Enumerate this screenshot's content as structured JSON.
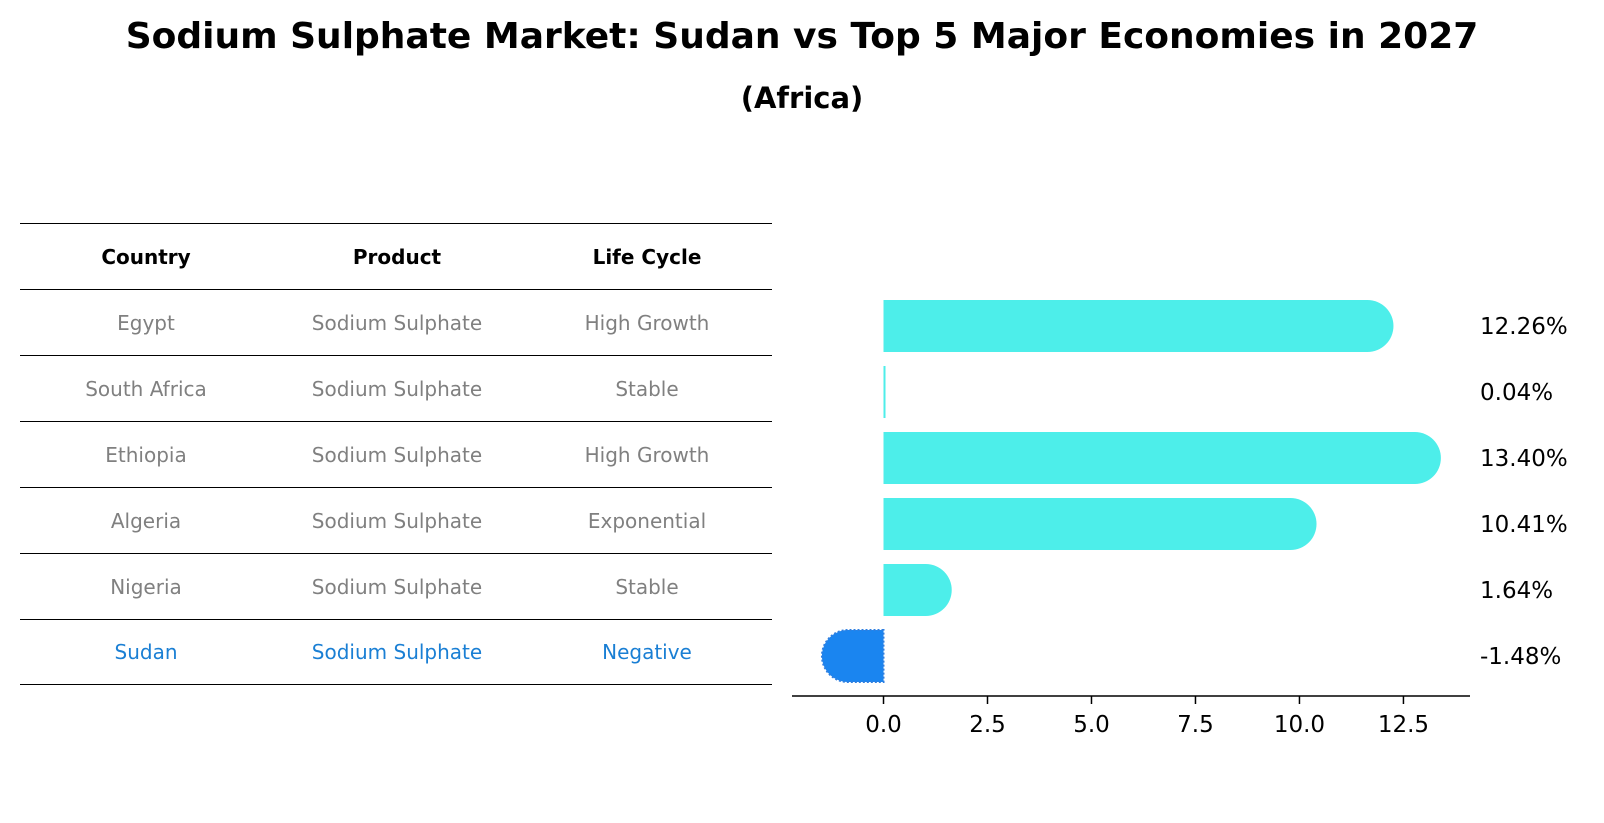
{
  "header": {
    "title": "Sodium Sulphate Market: Sudan vs Top 5 Major Economies in 2027",
    "subtitle": "(Africa)"
  },
  "table": {
    "columns": [
      "Country",
      "Product",
      "Life Cycle"
    ],
    "rows": [
      {
        "country": "Egypt",
        "product": "Sodium Sulphate",
        "life_cycle": "High Growth"
      },
      {
        "country": "South Africa",
        "product": "Sodium Sulphate",
        "life_cycle": "Stable"
      },
      {
        "country": "Ethiopia",
        "product": "Sodium Sulphate",
        "life_cycle": "High Growth"
      },
      {
        "country": "Algeria",
        "product": "Sodium Sulphate",
        "life_cycle": "Exponential"
      },
      {
        "country": "Nigeria",
        "product": "Sodium Sulphate",
        "life_cycle": "Stable"
      },
      {
        "country": "Sudan",
        "product": "Sodium Sulphate",
        "life_cycle": "Negative"
      }
    ]
  },
  "colors": {
    "bar_default": "#4ded eb",
    "bar_highlight": "#1a85f0",
    "table_text": "#808080",
    "table_highlight_text": "#1a7fd4"
  },
  "chart_data": {
    "type": "bar",
    "orientation": "horizontal",
    "categories": [
      "Egypt",
      "South Africa",
      "Ethiopia",
      "Algeria",
      "Nigeria",
      "Sudan"
    ],
    "values": [
      12.26,
      0.04,
      13.4,
      10.41,
      1.64,
      -1.48
    ],
    "value_labels": [
      "12.26%",
      "0.04%",
      "13.40%",
      "10.41%",
      "1.64%",
      "-1.48%"
    ],
    "highlight": "Sudan",
    "xlim": [
      -2.2,
      14.1
    ],
    "xticks": [
      0.0,
      2.5,
      5.0,
      7.5,
      10.0,
      12.5
    ],
    "xtick_labels": [
      "0.0",
      "2.5",
      "5.0",
      "7.5",
      "10.0",
      "12.5"
    ],
    "grid": false,
    "legend": "none"
  }
}
